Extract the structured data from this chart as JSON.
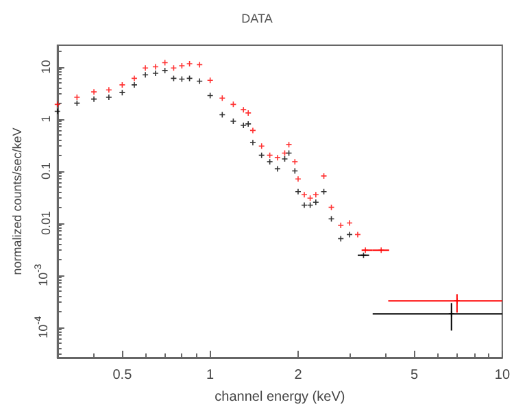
{
  "chart_data": {
    "type": "scatter",
    "title": "DATA",
    "xlabel": "channel energy (keV)",
    "ylabel": "normalized counts/sec/keV",
    "log": "xy",
    "grid": false,
    "legend": false,
    "marker": "cross",
    "xlim": [
      0.3,
      10
    ],
    "xticks": [
      0.5,
      1,
      2,
      5,
      10
    ],
    "ylim": [
      2.6e-05,
      26
    ],
    "yticks": [
      {
        "value": 0.0001,
        "label": "10$^{-4}$"
      },
      {
        "value": 0.001,
        "label": "10$^{-3}$"
      },
      0.01,
      0.1,
      1,
      10
    ],
    "series": [
      {
        "color": "#ff0000",
        "x": [
          0.3,
          0.35,
          0.4,
          0.45,
          0.5,
          0.55,
          0.6,
          0.65,
          0.7,
          0.75,
          0.8,
          0.85,
          0.92,
          1.0,
          1.1,
          1.2,
          1.3,
          1.35,
          1.4,
          1.5,
          1.6,
          1.7,
          1.8,
          1.86,
          1.95,
          2.0,
          2.1,
          2.2,
          2.3,
          2.45,
          2.6,
          2.8,
          3.0,
          3.2,
          3.4,
          3.85,
          7.0
        ],
        "values": [
          1.9,
          2.6,
          3.3,
          3.6,
          4.5,
          6,
          9.5,
          10,
          12,
          9.5,
          10.5,
          11.5,
          11,
          5.5,
          2.5,
          1.9,
          1.5,
          1.3,
          0.6,
          0.3,
          0.2,
          0.18,
          0.22,
          0.32,
          0.15,
          0.07,
          0.035,
          0.03,
          0.035,
          0.08,
          0.02,
          0.009,
          0.01,
          0.006,
          0.003,
          0.003,
          0.00032
        ],
        "xerrors": [
          null,
          null,
          null,
          null,
          null,
          null,
          null,
          null,
          null,
          null,
          null,
          null,
          null,
          null,
          null,
          null,
          null,
          null,
          null,
          null,
          null,
          null,
          null,
          null,
          null,
          null,
          null,
          null,
          null,
          null,
          null,
          null,
          null,
          null,
          [
            3.3,
            3.6
          ],
          [
            3.6,
            4.1
          ],
          [
            4.07,
            10
          ]
        ],
        "errors": [
          null,
          null,
          null,
          null,
          null,
          null,
          null,
          null,
          null,
          null,
          null,
          null,
          null,
          null,
          null,
          null,
          null,
          null,
          null,
          null,
          null,
          null,
          null,
          null,
          null,
          null,
          null,
          null,
          null,
          null,
          null,
          null,
          null,
          null,
          null,
          null,
          [
            0.00019,
            0.00043
          ]
        ]
      },
      {
        "color": "#000000",
        "x": [
          0.3,
          0.35,
          0.4,
          0.45,
          0.5,
          0.55,
          0.6,
          0.65,
          0.7,
          0.75,
          0.8,
          0.85,
          0.92,
          1.0,
          1.1,
          1.2,
          1.3,
          1.35,
          1.4,
          1.5,
          1.6,
          1.7,
          1.8,
          1.86,
          1.95,
          2.0,
          2.1,
          2.2,
          2.3,
          2.45,
          2.6,
          2.8,
          3.0,
          3.35,
          6.7
        ],
        "values": [
          1.4,
          2.0,
          2.4,
          2.6,
          3.2,
          4.5,
          7,
          7.5,
          8.5,
          6,
          5.8,
          6,
          5.3,
          2.8,
          1.2,
          0.9,
          0.75,
          0.8,
          0.35,
          0.2,
          0.15,
          0.11,
          0.17,
          0.22,
          0.1,
          0.04,
          0.022,
          0.022,
          0.025,
          0.04,
          0.012,
          0.005,
          0.006,
          0.0024,
          0.00018
        ],
        "xerrors": [
          null,
          null,
          null,
          null,
          null,
          null,
          null,
          null,
          null,
          null,
          null,
          null,
          null,
          null,
          null,
          null,
          null,
          null,
          null,
          null,
          null,
          null,
          null,
          null,
          null,
          null,
          null,
          null,
          null,
          null,
          null,
          null,
          null,
          [
            3.2,
            3.5
          ],
          [
            3.6,
            10
          ]
        ],
        "errors": [
          null,
          null,
          null,
          null,
          null,
          null,
          null,
          null,
          null,
          null,
          null,
          null,
          null,
          null,
          null,
          null,
          null,
          null,
          null,
          null,
          null,
          null,
          null,
          null,
          null,
          null,
          null,
          null,
          null,
          null,
          null,
          null,
          null,
          null,
          [
            8.6e-05,
            0.00029
          ]
        ]
      }
    ]
  }
}
